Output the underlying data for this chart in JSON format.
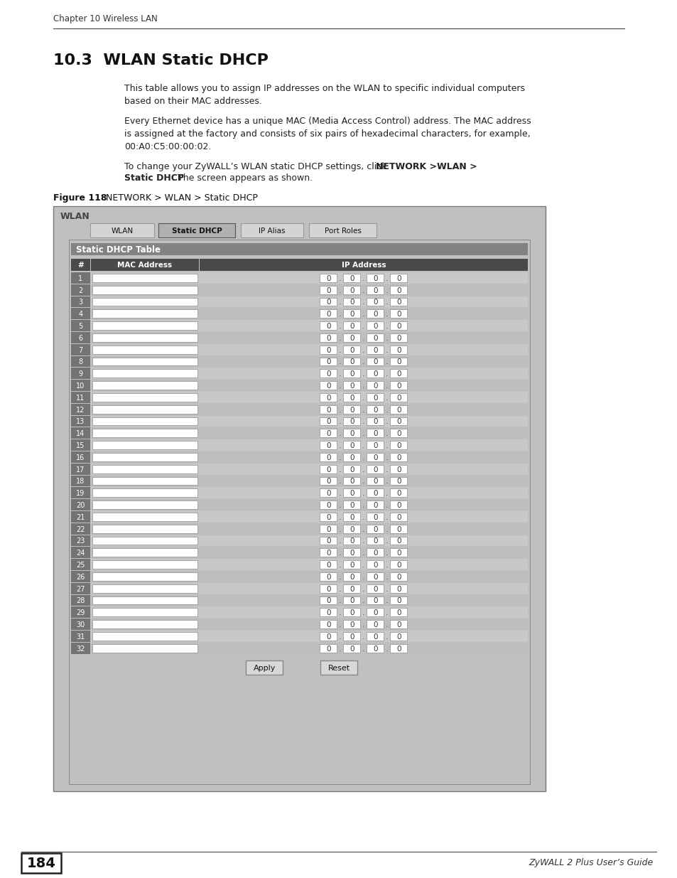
{
  "page_title": "Chapter 10 Wireless LAN",
  "section_title": "10.3  WLAN Static DHCP",
  "para1": "This table allows you to assign IP addresses on the WLAN to specific individual computers\nbased on their MAC addresses.",
  "para2": "Every Ethernet device has a unique MAC (Media Access Control) address. The MAC address\nis assigned at the factory and consists of six pairs of hexadecimal characters, for example,\n00:A0:C5:00:00:02.",
  "para3_normal": "To change your ZyWALL’s WLAN static DHCP settings, click ",
  "para3_bold1": "NETWORK >WLAN >",
  "para3_bold2": "Static DHCP",
  "para3_end": ". The screen appears as shown.",
  "figure_label": "Figure 118",
  "figure_title": "   NETWORK > WLAN > Static DHCP",
  "panel_label": "WLAN",
  "tab_wlan": "WLAN",
  "tab_static_dhcp": "Static DHCP",
  "tab_ip_alias": "IP Alias",
  "tab_port_roles": "Port Roles",
  "table_header": "Static DHCP Table",
  "col_num": "#",
  "col_mac": "MAC Address",
  "col_ip": "IP Address",
  "num_rows": 32,
  "btn_apply": "Apply",
  "btn_reset": "Reset",
  "page_num": "184",
  "page_right": "ZyWALL 2 Plus User’s Guide",
  "bg_color": "#ffffff",
  "panel_bg": "#c0c0c0",
  "outer_border": "#777777",
  "tab_active_bg": "#b0b0b0",
  "tab_inactive_bg": "#d4d4d4",
  "table_header_bg": "#838383",
  "col_header_bg": "#4a4a4a",
  "col_header_fg": "#ffffff",
  "row_num_bg": "#737373",
  "row_num_fg": "#ffffff",
  "row_bg_light": "#c8c8c8",
  "row_bg_dark": "#bebebe",
  "input_bg": "#ffffff",
  "input_border": "#999999",
  "btn_bg": "#d8d8d8",
  "btn_border": "#888888"
}
